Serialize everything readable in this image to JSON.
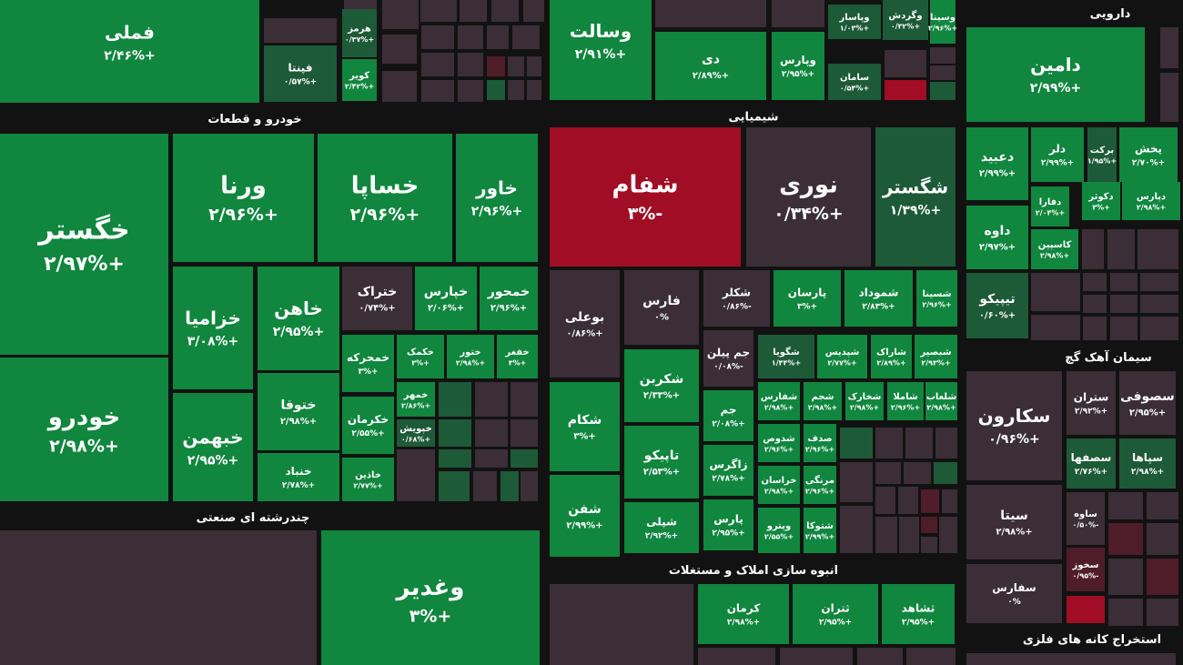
{
  "chart_data": {
    "type": "treemap",
    "colors": {
      "background": "#121212",
      "positive": "#10863e",
      "positive_dark": "#1d5a37",
      "neutral": "#3b2e36",
      "negative": "#a00d24",
      "negative_dark": "#4f1c2a",
      "text": "#ffffff"
    },
    "sectors": [
      {
        "name": "",
        "tiles": [
          {
            "symbol": "فملی",
            "change": "+۲/۴۶%",
            "value": 2.46
          },
          {
            "symbol": "هرمز",
            "change": "+۰/۳۷%",
            "value": 0.37
          },
          {
            "symbol": "فپنتا",
            "change": "+۰/۵۷%",
            "value": 0.57
          },
          {
            "symbol": "کویر",
            "change": "+۲/۴۲%",
            "value": 2.42
          }
        ]
      },
      {
        "name": "",
        "tiles": [
          {
            "symbol": "وسالت",
            "change": "+۲/۹۱%",
            "value": 2.91
          },
          {
            "symbol": "دی",
            "change": "+۲/۸۹%",
            "value": 2.89
          },
          {
            "symbol": "وپارس",
            "change": "+۲/۹۵%",
            "value": 2.95
          },
          {
            "symbol": "وپاسار",
            "change": "+۱/۰۳%",
            "value": 1.03
          },
          {
            "symbol": "وگردش",
            "change": "+۰/۳۲%",
            "value": 0.32
          },
          {
            "symbol": "وسینا",
            "change": "+۲/۹۶%",
            "value": 2.96
          },
          {
            "symbol": "سامان",
            "change": "+۰/۵۴%",
            "value": 0.54
          }
        ]
      },
      {
        "name": "دارویی",
        "tiles": [
          {
            "symbol": "دامین",
            "change": "+۲/۹۹%",
            "value": 2.99
          },
          {
            "symbol": "دعبید",
            "change": "+۲/۹۹%",
            "value": 2.99
          },
          {
            "symbol": "دلر",
            "change": "+۲/۹۹%",
            "value": 2.99
          },
          {
            "symbol": "برکت",
            "change": "+۱/۹۵%",
            "value": 1.95
          },
          {
            "symbol": "پخش",
            "change": "+۲/۷۰%",
            "value": 2.7
          },
          {
            "symbol": "دفارا",
            "change": "+۲/۰۴%",
            "value": 2.04
          },
          {
            "symbol": "دکوثر",
            "change": "+۳%",
            "value": 3
          },
          {
            "symbol": "دپارس",
            "change": "+۲/۹۸%",
            "value": 2.98
          },
          {
            "symbol": "داوه",
            "change": "+۲/۹۷%",
            "value": 2.97
          },
          {
            "symbol": "کاسپین",
            "change": "+۲/۹۸%",
            "value": 2.98
          },
          {
            "symbol": "تیپیکو",
            "change": "+۰/۶۰%",
            "value": 0.6
          }
        ]
      },
      {
        "name": "خودرو و قطعات",
        "tiles": [
          {
            "symbol": "خگستر",
            "change": "+۲/۹۷%",
            "value": 2.97
          },
          {
            "symbol": "ورنا",
            "change": "+۲/۹۶%",
            "value": 2.96
          },
          {
            "symbol": "خساپا",
            "change": "+۲/۹۶%",
            "value": 2.96
          },
          {
            "symbol": "خاور",
            "change": "+۲/۹۶%",
            "value": 2.96
          },
          {
            "symbol": "خزامیا",
            "change": "+۳/۰۸%",
            "value": 3.08
          },
          {
            "symbol": "خاهن",
            "change": "+۲/۹۵%",
            "value": 2.95
          },
          {
            "symbol": "ختراک",
            "change": "+۰/۷۴%",
            "value": 0.74
          },
          {
            "symbol": "خپارس",
            "change": "+۲/۰۶%",
            "value": 2.06
          },
          {
            "symbol": "خمحور",
            "change": "+۲/۹۶%",
            "value": 2.96
          },
          {
            "symbol": "خودرو",
            "change": "+۲/۹۸%",
            "value": 2.98
          },
          {
            "symbol": "ختوقا",
            "change": "+۲/۹۸%",
            "value": 2.98
          },
          {
            "symbol": "خمحرکه",
            "change": "+۳%",
            "value": 3
          },
          {
            "symbol": "خکمک",
            "change": "+۳%",
            "value": 3
          },
          {
            "symbol": "ختور",
            "change": "+۲/۹۸%",
            "value": 2.98
          },
          {
            "symbol": "خفغر",
            "change": "+۳%",
            "value": 3
          },
          {
            "symbol": "خبهمن",
            "change": "+۲/۹۵%",
            "value": 2.95
          },
          {
            "symbol": "خکرمان",
            "change": "+۲/۵۵%",
            "value": 2.55
          },
          {
            "symbol": "خمهر",
            "change": "+۲/۸۶%",
            "value": 2.86
          },
          {
            "symbol": "خپویش",
            "change": "+۰/۶۸%",
            "value": 0.68
          },
          {
            "symbol": "خنباد",
            "change": "+۲/۷۸%",
            "value": 2.78
          },
          {
            "symbol": "خاذین",
            "change": "+۲/۷۷%",
            "value": 2.77
          }
        ]
      },
      {
        "name": "شیمیایی",
        "tiles": [
          {
            "symbol": "شفام",
            "change": "-۳%",
            "value": -3
          },
          {
            "symbol": "نوری",
            "change": "+۰/۳۴%",
            "value": 0.34
          },
          {
            "symbol": "شگستر",
            "change": "+۱/۳۹%",
            "value": 1.39
          },
          {
            "symbol": "بوعلی",
            "change": "+۰/۸۶%",
            "value": 0.86
          },
          {
            "symbol": "فارس",
            "change": "۰%",
            "value": 0
          },
          {
            "symbol": "شکلر",
            "change": "-۰/۸۶%",
            "value": -0.86
          },
          {
            "symbol": "پارسان",
            "change": "+۳%",
            "value": 3
          },
          {
            "symbol": "شموداد",
            "change": "+۲/۸۳%",
            "value": 2.83
          },
          {
            "symbol": "شسینا",
            "change": "+۲/۹۶%",
            "value": 2.96
          },
          {
            "symbol": "جم پیلن",
            "change": "-۰/۰۸%",
            "value": -0.08
          },
          {
            "symbol": "شگویا",
            "change": "+۱/۴۴%",
            "value": 1.44
          },
          {
            "symbol": "شپدیس",
            "change": "+۲/۷۷%",
            "value": 2.77
          },
          {
            "symbol": "شاراک",
            "change": "+۲/۸۹%",
            "value": 2.89
          },
          {
            "symbol": "شبصیر",
            "change": "+۲/۹۳%",
            "value": 2.93
          },
          {
            "symbol": "شکربن",
            "change": "+۲/۳۳%",
            "value": 2.33
          },
          {
            "symbol": "جم",
            "change": "+۲/۰۸%",
            "value": 2.08
          },
          {
            "symbol": "شفارس",
            "change": "+۲/۹۸%",
            "value": 2.98
          },
          {
            "symbol": "شجم",
            "change": "+۲/۹۸%",
            "value": 2.98
          },
          {
            "symbol": "شخارک",
            "change": "+۲/۹۸%",
            "value": 2.98
          },
          {
            "symbol": "شاملا",
            "change": "+۲/۹۶%",
            "value": 2.96
          },
          {
            "symbol": "شلعاب",
            "change": "+۲/۹۸%",
            "value": 2.98
          },
          {
            "symbol": "شکام",
            "change": "+۳%",
            "value": 3
          },
          {
            "symbol": "شدوص",
            "change": "+۲/۹۶%",
            "value": 2.96
          },
          {
            "symbol": "صدف",
            "change": "+۲/۹۶%",
            "value": 2.96
          },
          {
            "symbol": "تاپیکو",
            "change": "+۲/۵۳%",
            "value": 2.53
          },
          {
            "symbol": "زاگرس",
            "change": "+۲/۷۸%",
            "value": 2.78
          },
          {
            "symbol": "خراسان",
            "change": "+۲/۹۸%",
            "value": 2.98
          },
          {
            "symbol": "مرنگی",
            "change": "+۲/۹۶%",
            "value": 2.96
          },
          {
            "symbol": "شفن",
            "change": "+۲/۹۹%",
            "value": 2.99
          },
          {
            "symbol": "شپلی",
            "change": "+۲/۹۲%",
            "value": 2.92
          },
          {
            "symbol": "پارس",
            "change": "+۲/۹۵%",
            "value": 2.95
          },
          {
            "symbol": "وپترو",
            "change": "+۲/۵۵%",
            "value": 2.55
          },
          {
            "symbol": "شتوکا",
            "change": "+۲/۹۹%",
            "value": 2.99
          }
        ]
      },
      {
        "name": "سیمان آهک گچ",
        "tiles": [
          {
            "symbol": "سکارون",
            "change": "+۰/۹۶%",
            "value": 0.96
          },
          {
            "symbol": "ستران",
            "change": "+۲/۹۲%",
            "value": 2.92
          },
          {
            "symbol": "سصوفی",
            "change": "+۲/۹۵%",
            "value": 2.95
          },
          {
            "symbol": "سصفها",
            "change": "+۲/۷۶%",
            "value": 2.76
          },
          {
            "symbol": "سپاها",
            "change": "+۲/۹۸%",
            "value": 2.98
          },
          {
            "symbol": "سیتا",
            "change": "+۲/۹۸%",
            "value": 2.98
          },
          {
            "symbol": "ساوه",
            "change": "-۰/۵۰%",
            "value": -0.5
          },
          {
            "symbol": "سخوز",
            "change": "-۰/۹۵%",
            "value": -0.95
          },
          {
            "symbol": "سفارس",
            "change": "۰%",
            "value": 0
          }
        ]
      },
      {
        "name": "چندرشته ای صنعتی",
        "tiles": [
          {
            "symbol": "وغدیر",
            "change": "+۳%",
            "value": 3
          },
          {
            "symbol": "",
            "change": "",
            "value": 0
          }
        ]
      },
      {
        "name": "انبوه سازی املاک و مستغلات",
        "tiles": [
          {
            "symbol": "کرمان",
            "change": "+۲/۹۸%",
            "value": 2.98
          },
          {
            "symbol": "ثتران",
            "change": "+۲/۹۵%",
            "value": 2.95
          },
          {
            "symbol": "ثشاهد",
            "change": "+۲/۹۵%",
            "value": 2.95
          }
        ]
      },
      {
        "name": "استخراج کانه های فلزی",
        "tiles": []
      }
    ]
  }
}
